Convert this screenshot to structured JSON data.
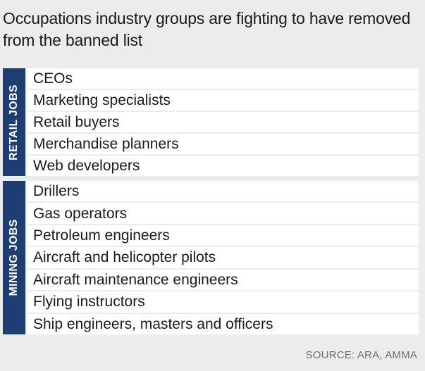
{
  "title": "Occupations industry groups are fighting to have removed from the banned list",
  "groups": [
    {
      "label": "RETAIL JOBS",
      "items": [
        "CEOs",
        "Marketing specialists",
        "Retail buyers",
        "Merchandise planners",
        "Web developers"
      ]
    },
    {
      "label": "MINING JOBS",
      "items": [
        "Drillers",
        "Gas operators",
        "Petroleum engineers",
        "Aircraft and helicopter pilots",
        "Aircraft maintenance engineers",
        "Flying instructors",
        "Ship engineers, masters and officers"
      ]
    }
  ],
  "source": "SOURCE: ARA, AMMA",
  "colors": {
    "background": "#ececec",
    "row": "#ffffff",
    "accent": "#1e3d73"
  }
}
